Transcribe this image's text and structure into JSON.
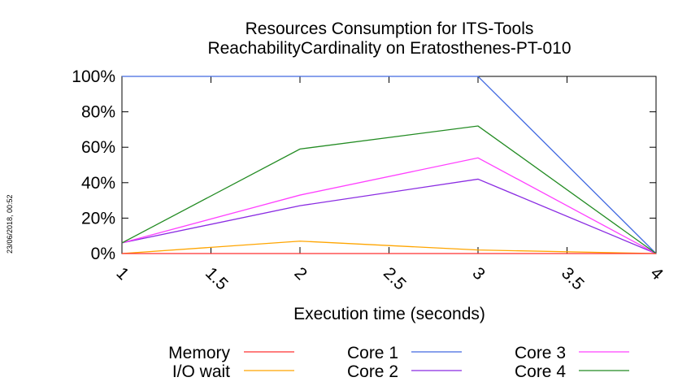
{
  "timestamp": "23/06/2018, 00:52",
  "chart_data": {
    "type": "line",
    "title": "Resources Consumption for ITS-Tools",
    "subtitle": "ReachabilityCardinality on Eratosthenes-PT-010",
    "xlabel": "Execution time (seconds)",
    "ylabel": "",
    "xlim": [
      1,
      4
    ],
    "ylim": [
      0,
      100
    ],
    "x_ticks": [
      "1",
      "1.5",
      "2",
      "2.5",
      "3",
      "3.5",
      "4"
    ],
    "y_ticks": [
      "0%",
      "20%",
      "40%",
      "60%",
      "80%",
      "100%"
    ],
    "grid": false,
    "legend_position": "bottom",
    "series": [
      {
        "name": "Memory",
        "color": "#ff3030",
        "x": [
          1,
          2,
          3,
          4
        ],
        "values": [
          0,
          0,
          0,
          0
        ]
      },
      {
        "name": "I/O wait",
        "color": "#ffa500",
        "x": [
          1,
          2,
          3,
          4
        ],
        "values": [
          0,
          7,
          2,
          0
        ]
      },
      {
        "name": "Core 1",
        "color": "#4169e1",
        "x": [
          1,
          2,
          3,
          4
        ],
        "values": [
          100,
          100,
          100,
          0
        ]
      },
      {
        "name": "Core 2",
        "color": "#8a2be2",
        "x": [
          1,
          2,
          3,
          4
        ],
        "values": [
          6,
          27,
          42,
          0
        ]
      },
      {
        "name": "Core 3",
        "color": "#ff40ff",
        "x": [
          1,
          2,
          3,
          4
        ],
        "values": [
          6,
          33,
          54,
          0
        ]
      },
      {
        "name": "Core 4",
        "color": "#228b22",
        "x": [
          1,
          2,
          3,
          4
        ],
        "values": [
          6,
          59,
          72,
          0
        ]
      }
    ]
  }
}
